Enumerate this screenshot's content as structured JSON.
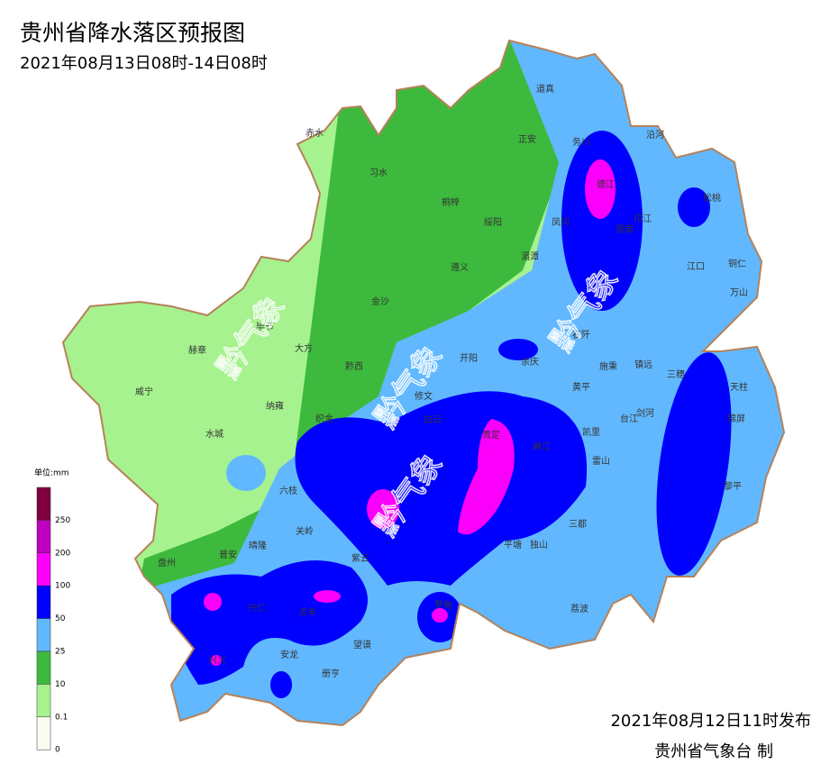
{
  "header": {
    "title": "贵州省降水落区预报图",
    "subtitle": "2021年08月13日08时-14日08时"
  },
  "map": {
    "counties": [
      "道真",
      "正安",
      "务川",
      "沿河",
      "德江",
      "松桃",
      "印江",
      "思南",
      "凤冈",
      "湄潭",
      "绥阳",
      "桐梓",
      "习水",
      "赤水",
      "遵义",
      "江口",
      "铜仁",
      "万山",
      "金沙",
      "毕节",
      "大方",
      "赫章",
      "威宁",
      "黔西",
      "开阳",
      "余庆",
      "石阡",
      "施秉",
      "镇远",
      "三穗",
      "天柱",
      "锦屏",
      "黄平",
      "修文",
      "纳雍",
      "织金",
      "白云",
      "剑河",
      "台江",
      "凯里",
      "水城",
      "雷山",
      "麻江",
      "六枝",
      "黎平",
      "三都",
      "独山",
      "平塘",
      "关岭",
      "晴隆",
      "普安",
      "盘州",
      "紫云",
      "罗甸",
      "兴仁",
      "贞丰",
      "荔波",
      "安龙",
      "望谟",
      "兴义",
      "册亨",
      "贵定"
    ],
    "watermark": "黔气象"
  },
  "legend": {
    "unit": "单位:mm",
    "labels": [
      250,
      200,
      100,
      50,
      25,
      10,
      0.1,
      0
    ]
  },
  "footer": {
    "issued": "2021年08月12日11时发布",
    "agency": "贵州省气象台 制"
  }
}
